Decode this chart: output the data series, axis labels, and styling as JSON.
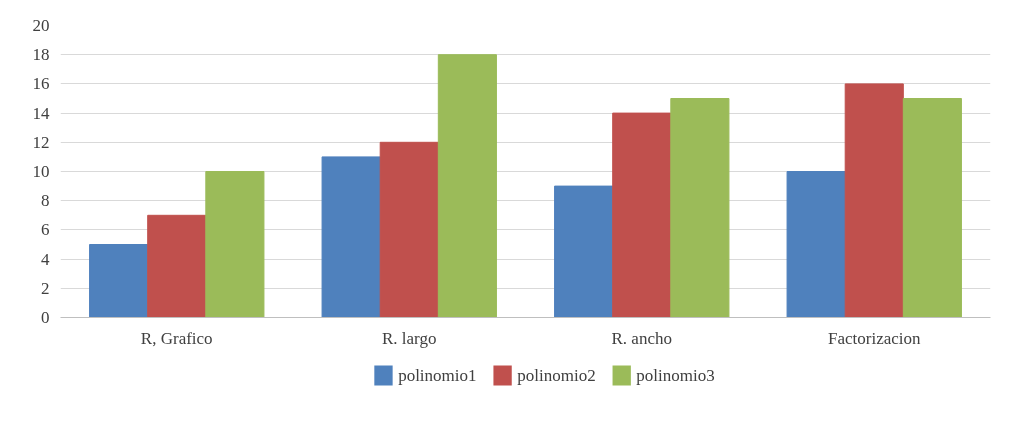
{
  "chart_data": {
    "type": "bar",
    "categories": [
      "R, Grafico",
      "R. largo",
      "R. ancho",
      "Factorizacion"
    ],
    "series": [
      {
        "name": "polinomio1",
        "color": "#4f81bd",
        "values": [
          5,
          11,
          9,
          10
        ]
      },
      {
        "name": "polinomio2",
        "color": "#c0504d",
        "values": [
          7,
          12,
          14,
          16
        ]
      },
      {
        "name": "polinomio3",
        "color": "#9bbb59",
        "values": [
          10,
          18,
          15,
          15
        ]
      }
    ],
    "ylim": [
      0,
      20
    ],
    "yticks": [
      0,
      2,
      4,
      6,
      8,
      10,
      12,
      14,
      16,
      18,
      20
    ],
    "grid": "y",
    "legend": "bottom"
  }
}
